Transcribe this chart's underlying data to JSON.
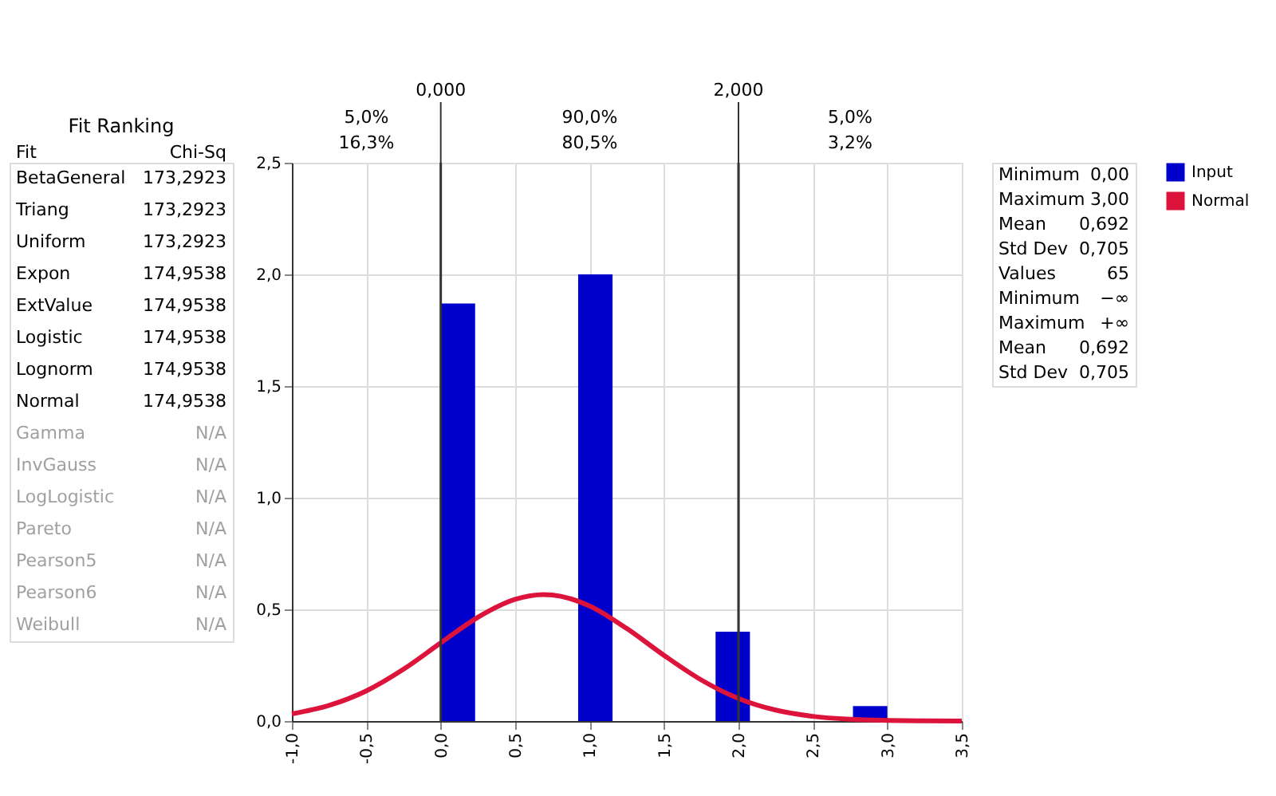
{
  "chart_data": [
    {
      "type": "other",
      "title": "Fit Ranking",
      "xlabel": "Fit",
      "ylabel": "Chi-Sq",
      "categories": [
        "BetaGeneral",
        "Triang",
        "Uniform",
        "Expon",
        "ExtValue",
        "Logistic",
        "Lognorm",
        "Normal",
        "Gamma",
        "InvGauss",
        "LogLogistic",
        "Pareto",
        "Pearson5",
        "Pearson6",
        "Weibull"
      ],
      "value_labels": [
        "173,2923",
        "173,2923",
        "173,2923",
        "174,9538",
        "174,9538",
        "174,9538",
        "174,9538",
        "174,9538",
        "N/A",
        "N/A",
        "N/A",
        "N/A",
        "N/A",
        "N/A",
        "N/A"
      ]
    },
    {
      "type": "histogram",
      "bins": [
        0,
        0.231,
        0.462,
        0.692,
        0.923,
        1.154,
        1.385,
        1.615,
        1.846,
        2.077,
        2.308,
        2.538,
        2.769,
        3.0
      ],
      "series": [
        {
          "name": "Input",
          "color": "#0000cc",
          "values": [
            1.87,
            0,
            0,
            0,
            2.0,
            0,
            0,
            0,
            0.4,
            0,
            0,
            0,
            0.067
          ]
        },
        {
          "name": "Normal",
          "type": "line",
          "color": "#dc143c",
          "x": [
            -1,
            -0.75,
            -0.5,
            -0.25,
            0,
            0.25,
            0.5,
            0.692,
            0.75,
            1,
            1.25,
            1.5,
            1.75,
            2,
            2.25,
            2.5,
            2.75,
            3,
            3.25,
            3.5
          ],
          "values": [
            0.032,
            0.07,
            0.135,
            0.232,
            0.35,
            0.465,
            0.545,
            0.566,
            0.564,
            0.515,
            0.414,
            0.294,
            0.184,
            0.101,
            0.049,
            0.021,
            0.008,
            0.003,
            0.001,
            0.0
          ]
        }
      ],
      "xlim": [
        -1,
        3.5
      ],
      "ylim": [
        0,
        2.5
      ],
      "xticks": [
        {
          "value": -1,
          "label": "-1,0"
        },
        {
          "value": -0.5,
          "label": "-0,5"
        },
        {
          "value": 0,
          "label": "0,0"
        },
        {
          "value": 0.5,
          "label": "0,5"
        },
        {
          "value": 1,
          "label": "1,0"
        },
        {
          "value": 1.5,
          "label": "1,5"
        },
        {
          "value": 2,
          "label": "2,0"
        },
        {
          "value": 2.5,
          "label": "2,5"
        },
        {
          "value": 3,
          "label": "3,0"
        },
        {
          "value": 3.5,
          "label": "3,5"
        }
      ],
      "yticks": [
        {
          "value": 0,
          "label": "0,0"
        },
        {
          "value": 0.5,
          "label": "0,5"
        },
        {
          "value": 1,
          "label": "1,0"
        },
        {
          "value": 1.5,
          "label": "1,5"
        },
        {
          "value": 2,
          "label": "2,0"
        },
        {
          "value": 2.5,
          "label": "2,5"
        }
      ],
      "ref_lines": [
        {
          "axis": "x",
          "value": 0,
          "label": "0,000"
        },
        {
          "axis": "x",
          "value": 2,
          "label": "2,000"
        }
      ],
      "annotations": [
        "5,0%",
        "90,0%",
        "5,0%",
        "16,3%",
        "80,5%",
        "3,2%"
      ],
      "grid": true,
      "legend": "right"
    },
    {
      "type": "other",
      "categories": [
        "Minimum",
        "Maximum",
        "Mean",
        "Std Dev",
        "Values",
        "Minimum",
        "Maximum",
        "Mean",
        "Std Dev"
      ],
      "value_labels": [
        "0,00",
        "3,00",
        "0,692",
        "0,705",
        "65",
        "−∞",
        "+∞",
        "0,692",
        "0,705"
      ]
    }
  ]
}
